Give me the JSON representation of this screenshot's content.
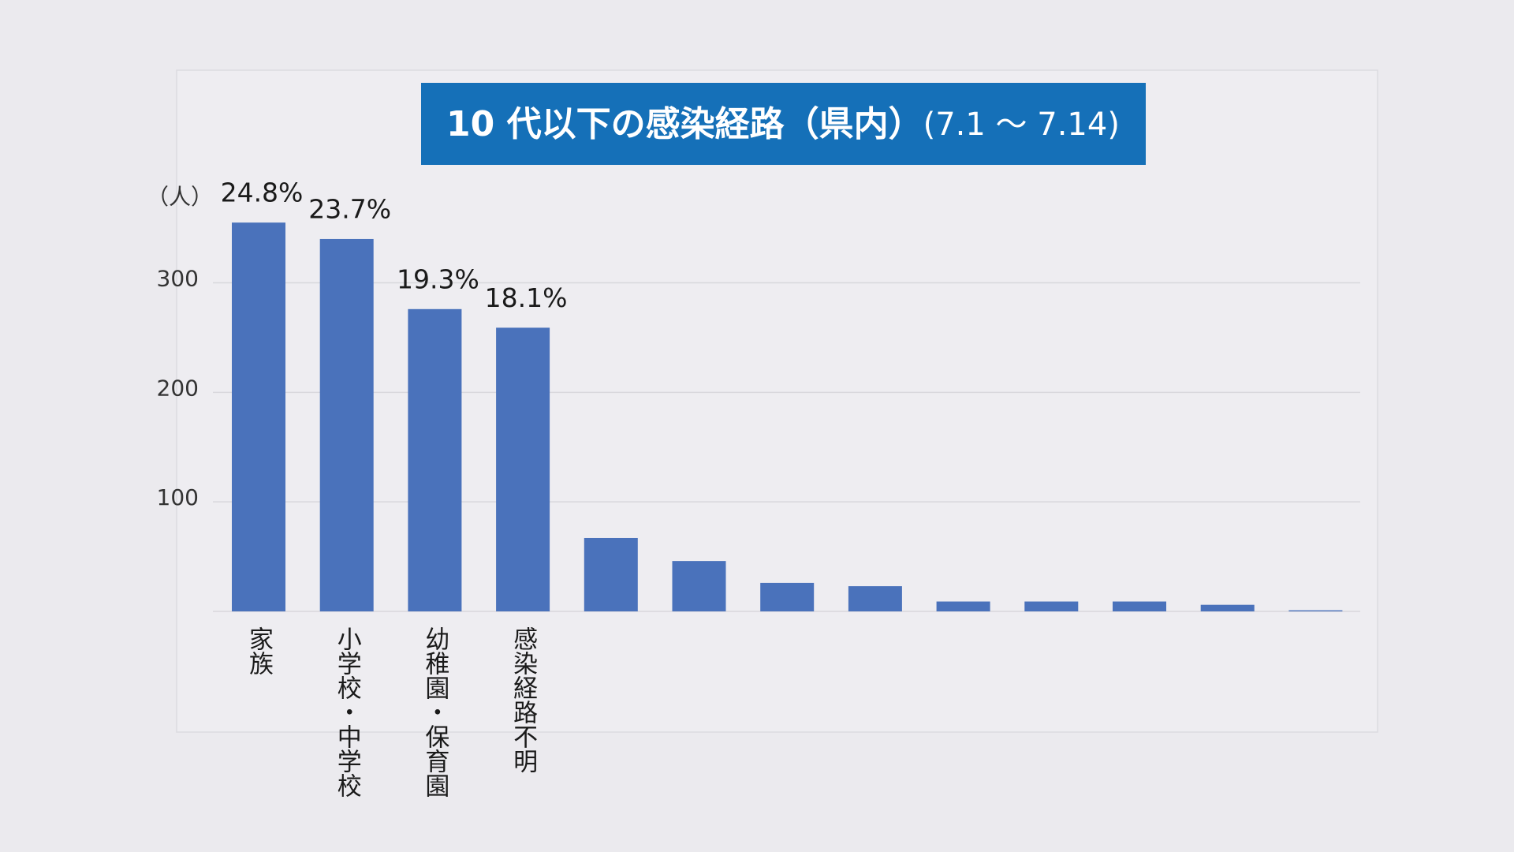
{
  "chart_data": {
    "type": "bar",
    "title": "10 代以下の感染経路（県内）",
    "period": "(7.1 ～ 7.14)",
    "y_label": "（人）",
    "categories": [
      "家族",
      "小学校・中学校",
      "幼稚園・保育園",
      "感染経路不明",
      null,
      null,
      null,
      null,
      null,
      null,
      null,
      null,
      null
    ],
    "values": [
      355,
      340,
      276,
      259,
      67,
      46,
      26,
      23,
      9,
      9,
      9,
      6,
      1
    ],
    "share_labels": [
      "24.8%",
      "23.7%",
      "19.3%",
      "18.1%",
      null,
      null,
      null,
      null,
      null,
      null,
      null,
      null,
      null
    ],
    "color": "#4a72bb",
    "ylim": [
      0,
      430
    ],
    "yticks": [
      100,
      200,
      300
    ],
    "grid": true
  }
}
